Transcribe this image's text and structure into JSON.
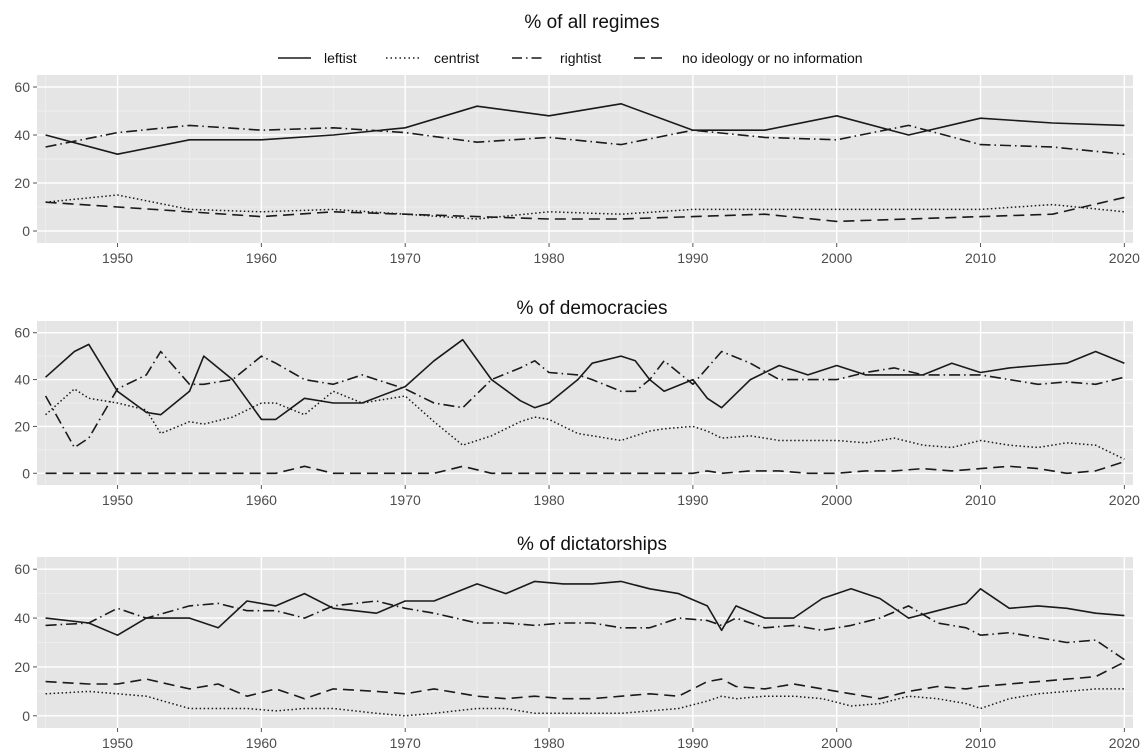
{
  "chart_data": [
    {
      "type": "line",
      "title": "% of all regimes",
      "xlabel": "",
      "ylabel": "",
      "xlim": [
        1945,
        2020
      ],
      "ylim": [
        -5,
        65
      ],
      "x_ticks": [
        1950,
        1960,
        1970,
        1980,
        1990,
        2000,
        2010,
        2020
      ],
      "y_ticks": [
        0,
        20,
        40,
        60
      ],
      "grid": true,
      "legend_position": "top",
      "x": [
        1945,
        1950,
        1955,
        1960,
        1965,
        1970,
        1975,
        1980,
        1985,
        1990,
        1995,
        2000,
        2005,
        2010,
        2015,
        2020
      ],
      "series": [
        {
          "name": "leftist",
          "style": "solid",
          "values": [
            40,
            32,
            38,
            38,
            40,
            43,
            52,
            48,
            53,
            42,
            42,
            48,
            40,
            47,
            45,
            44
          ]
        },
        {
          "name": "centrist",
          "style": "dotted",
          "values": [
            12,
            15,
            9,
            8,
            9,
            7,
            5,
            8,
            7,
            9,
            9,
            9,
            9,
            9,
            11,
            8
          ]
        },
        {
          "name": "rightist",
          "style": "dashdot",
          "values": [
            35,
            41,
            44,
            42,
            43,
            41,
            37,
            39,
            36,
            42,
            39,
            38,
            44,
            36,
            35,
            32
          ]
        },
        {
          "name": "no ideology or no information",
          "style": "longdash",
          "values": [
            12,
            10,
            8,
            6,
            8,
            7,
            6,
            5,
            5,
            6,
            7,
            4,
            5,
            6,
            7,
            14
          ]
        }
      ]
    },
    {
      "type": "line",
      "title": "% of democracies",
      "xlabel": "",
      "ylabel": "",
      "xlim": [
        1945,
        2020
      ],
      "ylim": [
        -5,
        65
      ],
      "x_ticks": [
        1950,
        1960,
        1970,
        1980,
        1990,
        2000,
        2010,
        2020
      ],
      "y_ticks": [
        0,
        20,
        40,
        60
      ],
      "grid": true,
      "x": [
        1945,
        1947,
        1948,
        1950,
        1952,
        1953,
        1955,
        1956,
        1958,
        1960,
        1961,
        1963,
        1965,
        1967,
        1970,
        1972,
        1974,
        1976,
        1978,
        1979,
        1980,
        1982,
        1983,
        1985,
        1986,
        1987,
        1988,
        1990,
        1991,
        1992,
        1994,
        1996,
        1998,
        2000,
        2002,
        2004,
        2006,
        2008,
        2010,
        2012,
        2014,
        2016,
        2018,
        2020
      ],
      "series": [
        {
          "name": "leftist",
          "style": "solid",
          "values": [
            41,
            52,
            55,
            35,
            26,
            25,
            35,
            50,
            40,
            23,
            23,
            32,
            30,
            30,
            37,
            48,
            57,
            40,
            31,
            28,
            30,
            40,
            47,
            50,
            48,
            40,
            35,
            40,
            32,
            28,
            40,
            46,
            42,
            46,
            42,
            42,
            42,
            47,
            43,
            45,
            46,
            47,
            52,
            47
          ]
        },
        {
          "name": "centrist",
          "style": "dotted",
          "values": [
            25,
            36,
            32,
            30,
            27,
            17,
            22,
            21,
            24,
            30,
            30,
            25,
            35,
            30,
            33,
            22,
            12,
            16,
            22,
            24,
            23,
            17,
            16,
            14,
            16,
            18,
            19,
            20,
            18,
            15,
            16,
            14,
            14,
            14,
            13,
            15,
            12,
            11,
            14,
            12,
            11,
            13,
            12,
            6
          ]
        },
        {
          "name": "rightist",
          "style": "dashdot",
          "values": [
            33,
            11,
            15,
            36,
            42,
            52,
            38,
            38,
            40,
            50,
            47,
            40,
            38,
            42,
            36,
            30,
            28,
            40,
            45,
            48,
            43,
            42,
            40,
            35,
            35,
            40,
            48,
            38,
            45,
            52,
            47,
            40,
            40,
            40,
            43,
            45,
            42,
            42,
            42,
            40,
            38,
            39,
            38,
            41
          ]
        },
        {
          "name": "no ideology or no information",
          "style": "longdash",
          "values": [
            0,
            0,
            0,
            0,
            0,
            0,
            0,
            0,
            0,
            0,
            0,
            3,
            0,
            0,
            0,
            0,
            3,
            0,
            0,
            0,
            0,
            0,
            0,
            0,
            0,
            0,
            0,
            0,
            1,
            0,
            1,
            1,
            0,
            0,
            1,
            1,
            2,
            1,
            2,
            3,
            2,
            0,
            1,
            5
          ]
        }
      ]
    },
    {
      "type": "line",
      "title": "% of dictatorships",
      "xlabel": "",
      "ylabel": "",
      "xlim": [
        1945,
        2020
      ],
      "ylim": [
        -5,
        65
      ],
      "x_ticks": [
        1950,
        1960,
        1970,
        1980,
        1990,
        2000,
        2010,
        2020
      ],
      "y_ticks": [
        0,
        20,
        40,
        60
      ],
      "grid": true,
      "x": [
        1945,
        1948,
        1950,
        1952,
        1955,
        1957,
        1959,
        1961,
        1963,
        1965,
        1968,
        1970,
        1972,
        1975,
        1977,
        1979,
        1981,
        1983,
        1985,
        1987,
        1989,
        1991,
        1992,
        1993,
        1995,
        1997,
        1999,
        2001,
        2003,
        2005,
        2007,
        2009,
        2010,
        2012,
        2014,
        2016,
        2018,
        2020
      ],
      "series": [
        {
          "name": "leftist",
          "style": "solid",
          "values": [
            40,
            38,
            33,
            40,
            40,
            36,
            47,
            45,
            50,
            44,
            42,
            47,
            47,
            54,
            50,
            55,
            54,
            54,
            55,
            52,
            50,
            45,
            35,
            45,
            40,
            40,
            48,
            52,
            48,
            40,
            43,
            46,
            52,
            44,
            45,
            44,
            42,
            41
          ]
        },
        {
          "name": "centrist",
          "style": "dotted",
          "values": [
            9,
            10,
            9,
            8,
            3,
            3,
            3,
            2,
            3,
            3,
            1,
            0,
            1,
            3,
            3,
            1,
            1,
            1,
            1,
            2,
            3,
            6,
            8,
            7,
            8,
            8,
            7,
            4,
            5,
            8,
            7,
            5,
            3,
            7,
            9,
            10,
            11,
            11
          ]
        },
        {
          "name": "rightist",
          "style": "dashdot",
          "values": [
            37,
            38,
            44,
            40,
            45,
            46,
            43,
            43,
            40,
            45,
            47,
            44,
            42,
            38,
            38,
            37,
            38,
            38,
            36,
            36,
            40,
            39,
            37,
            40,
            36,
            37,
            35,
            37,
            40,
            45,
            38,
            36,
            33,
            34,
            32,
            30,
            31,
            23
          ]
        },
        {
          "name": "no ideology or no information",
          "style": "longdash",
          "values": [
            14,
            13,
            13,
            15,
            11,
            13,
            8,
            11,
            7,
            11,
            10,
            9,
            11,
            8,
            7,
            8,
            7,
            7,
            8,
            9,
            8,
            14,
            15,
            12,
            11,
            13,
            11,
            9,
            7,
            10,
            12,
            11,
            12,
            13,
            14,
            15,
            16,
            22
          ]
        }
      ]
    }
  ]
}
